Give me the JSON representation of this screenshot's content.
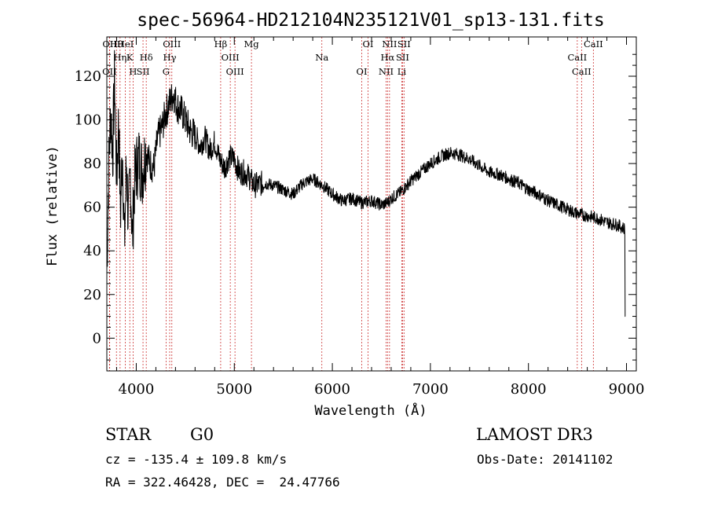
{
  "chart_data": {
    "type": "line",
    "title": "spec-56964-HD212104N235121V01_sp13-131.fits",
    "xlabel": "Wavelength (Å)",
    "ylabel": "Flux (relative)",
    "xlim": [
      3700,
      9100
    ],
    "ylim": [
      -15,
      138
    ],
    "xticks": [
      4000,
      5000,
      6000,
      7000,
      8000,
      9000
    ],
    "yticks": [
      0,
      20,
      40,
      60,
      80,
      100,
      120
    ],
    "series": [
      {
        "name": "flux",
        "x": [
          3700,
          3720,
          3740,
          3760,
          3780,
          3800,
          3820,
          3840,
          3860,
          3880,
          3900,
          3920,
          3940,
          3960,
          3980,
          4000,
          4030,
          4060,
          4100,
          4140,
          4180,
          4220,
          4260,
          4300,
          4340,
          4380,
          4420,
          4460,
          4500,
          4550,
          4600,
          4650,
          4700,
          4750,
          4800,
          4850,
          4900,
          4950,
          5000,
          5050,
          5100,
          5150,
          5200,
          5300,
          5400,
          5500,
          5600,
          5700,
          5800,
          5900,
          6000,
          6100,
          6200,
          6300,
          6400,
          6500,
          6560,
          6600,
          6700,
          6800,
          6900,
          7000,
          7100,
          7200,
          7300,
          7400,
          7500,
          7600,
          7700,
          7800,
          7900,
          8000,
          8100,
          8200,
          8300,
          8400,
          8500,
          8600,
          8700,
          8800,
          8900,
          8990
        ],
        "values": [
          32,
          78,
          105,
          85,
          120,
          72,
          100,
          58,
          88,
          42,
          82,
          52,
          76,
          45,
          70,
          78,
          82,
          76,
          86,
          80,
          78,
          92,
          96,
          103,
          108,
          112,
          106,
          104,
          100,
          95,
          93,
          88,
          92,
          86,
          90,
          82,
          78,
          83,
          82,
          76,
          76,
          74,
          70,
          71,
          70,
          68,
          66,
          71,
          73,
          70,
          66,
          63,
          64,
          62,
          63,
          61,
          62,
          64,
          67,
          72,
          76,
          80,
          83,
          85,
          84,
          82,
          79,
          76,
          75,
          73,
          71,
          68,
          66,
          63,
          61,
          59,
          57,
          56,
          55,
          53,
          52,
          50
        ]
      }
    ],
    "lines": [
      {
        "label": "Hθ",
        "x": 3798
      },
      {
        "label": "Hη",
        "x": 3835
      },
      {
        "label": "OII",
        "x": 3727
      },
      {
        "label": "OII",
        "x": 3729
      },
      {
        "label": "K",
        "x": 3934
      },
      {
        "label": "H",
        "x": 3968
      },
      {
        "label": "HeI",
        "x": 3889
      },
      {
        "label": "Hδ",
        "x": 4102
      },
      {
        "label": "SII",
        "x": 4069
      },
      {
        "label": "OIII",
        "x": 4363
      },
      {
        "label": "Hγ",
        "x": 4341
      },
      {
        "label": "G",
        "x": 4304
      },
      {
        "label": "Hβ",
        "x": 4861
      },
      {
        "label": "OIII",
        "x": 4959
      },
      {
        "label": "OIII",
        "x": 5007
      },
      {
        "label": "Mg",
        "x": 5175
      },
      {
        "label": "Na",
        "x": 5893
      },
      {
        "label": "OI",
        "x": 6300
      },
      {
        "label": "OI",
        "x": 6364
      },
      {
        "label": "Hα",
        "x": 6563
      },
      {
        "label": "NII",
        "x": 6548
      },
      {
        "label": "NII",
        "x": 6583
      },
      {
        "label": "SII",
        "x": 6716
      },
      {
        "label": "Li",
        "x": 6708
      },
      {
        "label": "SII",
        "x": 6731
      },
      {
        "label": "CaII",
        "x": 8498
      },
      {
        "label": "CaII",
        "x": 8542
      },
      {
        "label": "CaII",
        "x": 8662
      }
    ]
  },
  "info": {
    "type_label": "STAR",
    "subclass": "G0",
    "survey": "LAMOST DR3",
    "cz": "cz = -135.4 ± 109.8 km/s",
    "obs_date": "Obs-Date: 20141102",
    "coords": "RA = 322.46428, DEC =  24.47766"
  },
  "colors": {
    "line_marker": "#cc3333",
    "spectrum": "#000000"
  }
}
